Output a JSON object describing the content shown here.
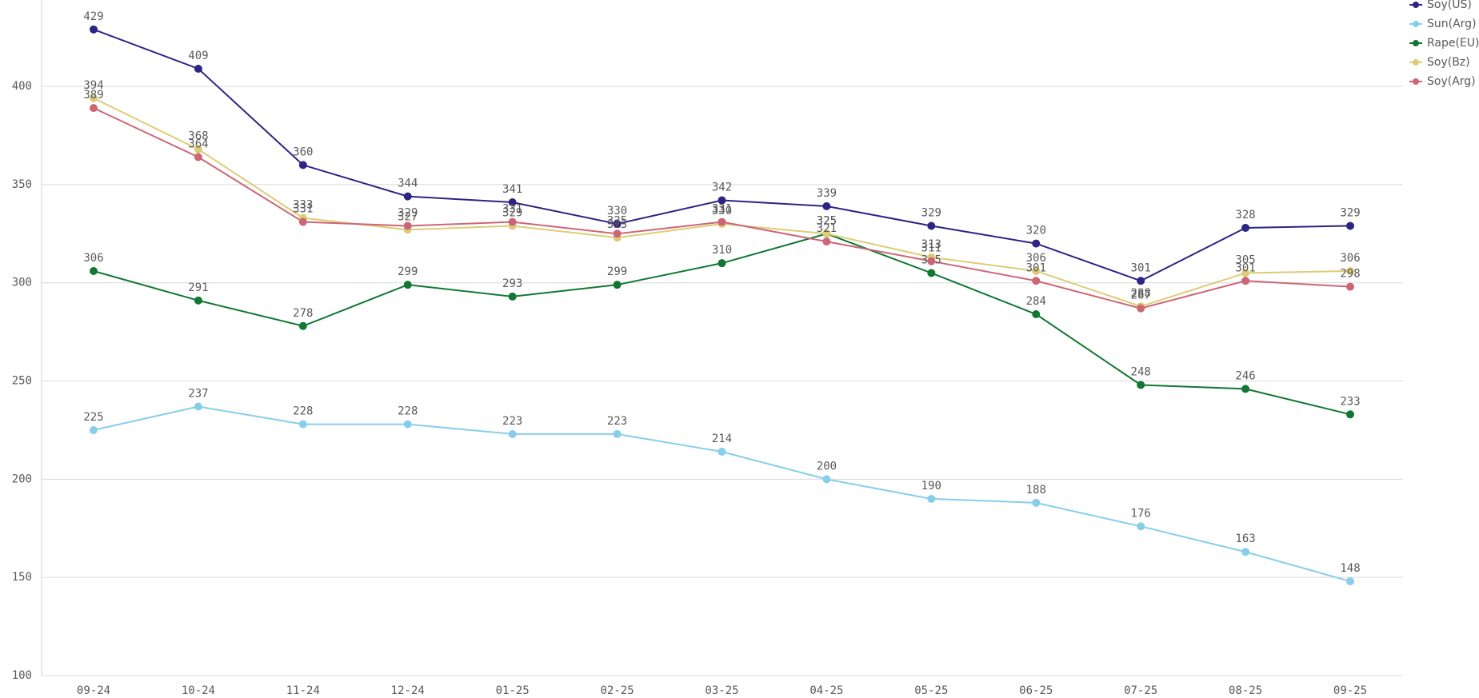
{
  "chart_data": {
    "type": "line",
    "categories": [
      "09-24",
      "10-24",
      "11-24",
      "12-24",
      "01-25",
      "02-25",
      "03-25",
      "04-25",
      "05-25",
      "06-25",
      "07-25",
      "08-25",
      "09-25"
    ],
    "series": [
      {
        "name": "Soy(US)",
        "color": "#2e2483",
        "values": [
          429,
          409,
          360,
          344,
          341,
          330,
          342,
          339,
          329,
          320,
          301,
          328,
          329
        ]
      },
      {
        "name": "Sun(Arg)",
        "color": "#87ceeb",
        "values": [
          225,
          237,
          228,
          228,
          223,
          223,
          214,
          200,
          190,
          188,
          176,
          163,
          148
        ]
      },
      {
        "name": "Rape(EU)",
        "color": "#117733",
        "values": [
          306,
          291,
          278,
          299,
          293,
          299,
          310,
          325,
          305,
          284,
          248,
          246,
          233
        ]
      },
      {
        "name": "Soy(Bz)",
        "color": "#ddcc77",
        "values": [
          394,
          368,
          333,
          327,
          329,
          323,
          330,
          325,
          313,
          306,
          288,
          305,
          306
        ]
      },
      {
        "name": "Soy(Arg)",
        "color": "#cc6677",
        "values": [
          389,
          364,
          331,
          329,
          331,
          325,
          331,
          321,
          311,
          301,
          287,
          301,
          298
        ]
      }
    ],
    "ylim": [
      100,
      444
    ],
    "yticks": [
      100,
      150,
      200,
      250,
      300,
      350,
      400
    ],
    "grid": true,
    "legend": "top-right"
  }
}
